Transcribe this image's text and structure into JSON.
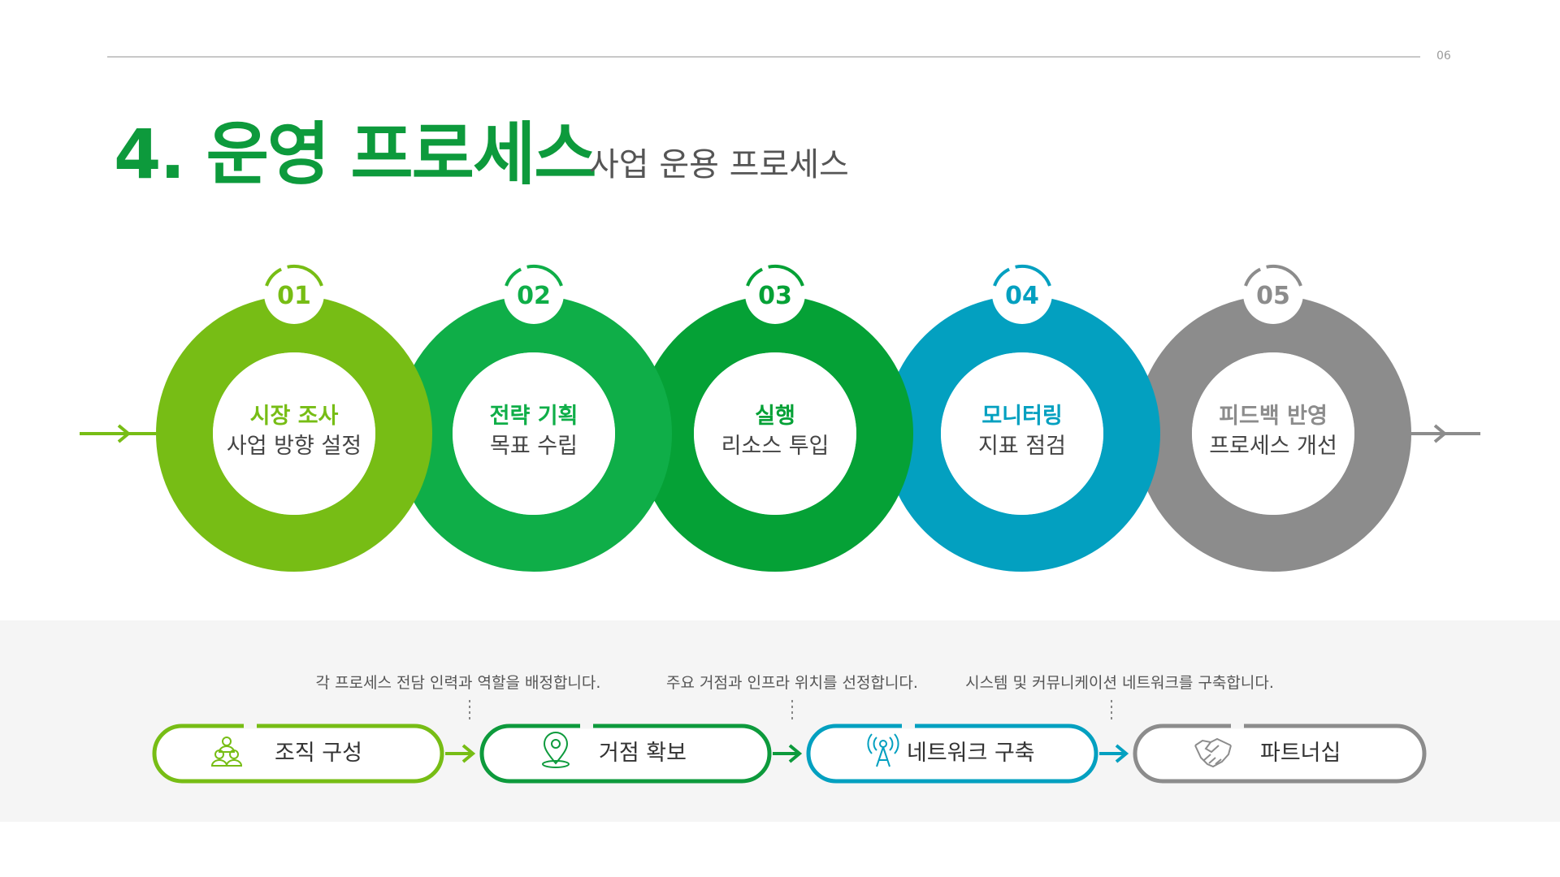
{
  "header": {
    "page_number": "06",
    "title": "4. 운영 프로세스",
    "subtitle": "사업 운용 프로세스"
  },
  "steps": [
    {
      "number": "01",
      "title": "시장 조사",
      "subtitle": "사업 방향 설정",
      "color": "#77bd15"
    },
    {
      "number": "02",
      "title": "전략 기획",
      "subtitle": "목표 수립",
      "color": "#0fae48"
    },
    {
      "number": "03",
      "title": "실행",
      "subtitle": "리소스 투입",
      "color": "#05a136"
    },
    {
      "number": "04",
      "title": "모니터링",
      "subtitle": "지표 점검",
      "color": "#03a0c0"
    },
    {
      "number": "05",
      "title": "피드백 반영",
      "subtitle": "프로세스 개선",
      "color": "#8c8c8c"
    }
  ],
  "bottom": {
    "descriptions": [
      "각 프로세스 전담 인력과 역할을 배정합니다.",
      "주요 거점과 인프라 위치를 선정합니다.",
      "시스템 및 커뮤니케이션 네트워크를 구축합니다."
    ],
    "pills": [
      {
        "label": "조직 구성",
        "icon": "people-icon",
        "color": "#77bd15"
      },
      {
        "label": "거점 확보",
        "icon": "location-pin-icon",
        "color": "#0d9a3c"
      },
      {
        "label": "네트워크 구축",
        "icon": "antenna-icon",
        "color": "#03a0c0"
      },
      {
        "label": "파트너십",
        "icon": "handshake-icon",
        "color": "#8c8c8c"
      }
    ]
  }
}
